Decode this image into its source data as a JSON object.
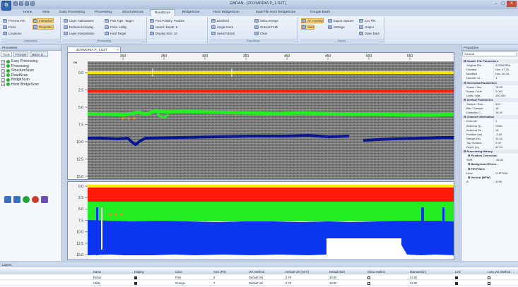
{
  "window": {
    "app_btn": "G",
    "title": "RADAN - [ZOXMORIA P_1.DZT]",
    "controls": [
      "–",
      "▢",
      "✕"
    ]
  },
  "ribbon_tabs": [
    "Home",
    "View",
    "Easy Processing",
    "Processing",
    "StructureScan",
    "RoadScan",
    "BridgeScan",
    "Horiz BridgeScan",
    "Dual File Horz BridgeScan",
    "Google Earth"
  ],
  "active_tab_index": 5,
  "ribbon": {
    "g1_items": [
      "Process File",
      "Interactive",
      "Picks",
      "Properties",
      "Locations"
    ],
    "g1_label": "Interactive",
    "g2_items": [
      "Layer Calibrations",
      "Reflection Display",
      "Layer Interpolation",
      "Pick Type: Target",
      "Picks: Utility",
      "Hard Target"
    ],
    "g2_label": "Processing",
    "g3_items": [
      "Pick Polarity: Positive",
      "Search Depth: 8",
      "Display Size: 10"
    ],
    "g4_items": [
      "Dividend",
      "Single Point",
      "Search Block",
      "Select Range",
      "Ground Truth",
      "Clear"
    ],
    "g4_label": "RoadScan",
    "g5_items": [
      "AC Overlay",
      "Start",
      "Settings",
      "Export Options",
      "Csv File",
      "Output",
      "Open Data"
    ],
    "g5_label": "Export"
  },
  "left_panel": {
    "title": "Processes",
    "tabs": [
      "Tools",
      "Process",
      "Macro Li..."
    ],
    "tree": [
      "Easy Processing",
      "Processing",
      "StructureScan",
      "RoadScan",
      "BridgeScan",
      "Horiz BridgeScan"
    ]
  },
  "document": {
    "tab": "ZOXMORIA P_1.DZT",
    "x_ticks": [
      "200",
      "250",
      "300",
      "350",
      "400",
      "450",
      "500",
      "550"
    ],
    "top_unit": "ns",
    "depth_ticks": [
      "0.0",
      "2.5",
      "5.0",
      "7.5",
      "10.0",
      "12.5",
      "15.0"
    ]
  },
  "properties": {
    "title": "Properties",
    "combo": "General",
    "rows": [
      {
        "type": "cat",
        "name": "Header File Parameters"
      },
      {
        "name": "Original File...",
        "value": "ZOXMORIA"
      },
      {
        "name": "Created",
        "value": "Nov. 17 20..."
      },
      {
        "name": "Modified",
        "value": "Nov. 28 20..."
      },
      {
        "name": "Number of ...",
        "value": "1"
      },
      {
        "type": "cat",
        "name": "Horizontal Parameters"
      },
      {
        "name": "Scans / Sec",
        "value": "78.00"
      },
      {
        "name": "Scans / Unit",
        "value": "3.000"
      },
      {
        "name": "Units / Mar...",
        "value": "250.000"
      },
      {
        "type": "cat",
        "name": "Vertical Parameters"
      },
      {
        "name": "Samps / Sca...",
        "value": "512"
      },
      {
        "name": "Bits / Sample",
        "value": "16"
      },
      {
        "name": "Dielectric C...",
        "value": "16.00"
      },
      {
        "type": "cat",
        "name": "Channel Information"
      },
      {
        "name": "Channel",
        "value": "1"
      },
      {
        "name": "Antenna Ty...",
        "value": "GSSI"
      },
      {
        "name": "Antenna Se...",
        "value": "16"
      },
      {
        "name": "Position (ns)",
        "value": "-3.00"
      },
      {
        "name": "Range (ns)",
        "value": "12.00"
      },
      {
        "name": "Top Surface...",
        "value": "0.00"
      },
      {
        "name": "Depth (m)",
        "value": "41.24"
      },
      {
        "type": "cat",
        "name": "Processing History"
      },
      {
        "type": "sub",
        "name": "Position Correction"
      },
      {
        "name": "Shift",
        "value": "-96.00"
      },
      {
        "type": "sub",
        "name": "Background Remo..."
      },
      {
        "type": "sub",
        "name": "FIR Filters"
      },
      {
        "name": "Desc",
        "value": "CUSTOM"
      },
      {
        "type": "sub",
        "name": "Vertical (BPW)"
      },
      {
        "name": "A",
        "value": "4195"
      }
    ]
  },
  "layers_panel": {
    "title": "Layers",
    "headers": [
      "Name",
      "Display",
      "Color",
      "Size (Pix)",
      "Vel. Method",
      "Default Vel (in/ns)",
      "Default Diel",
      "Show Outline",
      "Diameter(in)",
      "Link",
      "Loss Vel. Method"
    ],
    "rows": [
      [
        "Rebar",
        true,
        "Pink",
        "6",
        "Default Vel",
        "2.70",
        "10.00",
        false,
        "24.00",
        true,
        false
      ],
      [
        "Utility",
        true,
        "Orange",
        "7",
        "Default Vel",
        "2.70",
        "13.00",
        false,
        "24.00",
        true,
        false
      ]
    ]
  },
  "colors": {
    "layer_yellow": "#f4ea00",
    "layer_red": "#ff1a0a",
    "layer_green": "#22ee22",
    "layer_navy": "#0a1590",
    "layer_blue": "#0c35f0",
    "pick_orange": "#f08a22",
    "ribbon_blue": "#dae5f3"
  }
}
